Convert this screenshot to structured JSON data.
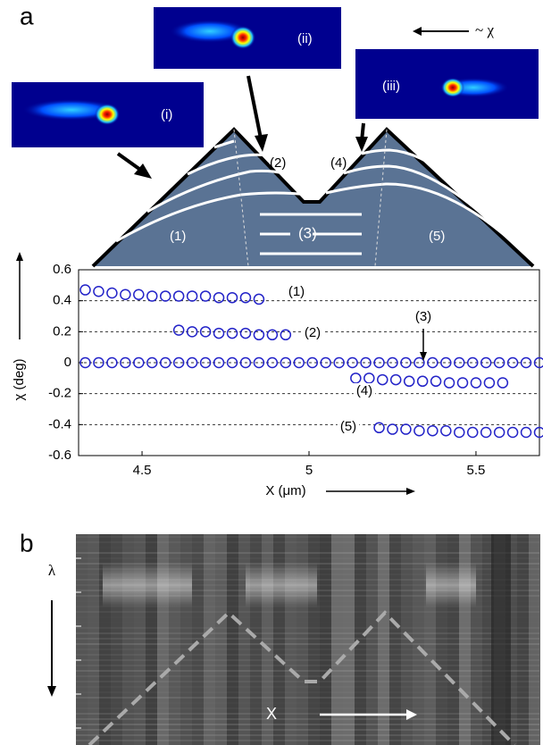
{
  "panel_a_label": "a",
  "panel_b_label": "b",
  "diagram": {
    "direction_label": "~ χ",
    "insets": [
      "(i)",
      "(ii)",
      "(iii)"
    ],
    "segments": [
      "(1)",
      "(2)",
      "(3)",
      "(4)",
      "(5)"
    ]
  },
  "chart_data": {
    "type": "scatter",
    "ylabel": "χ (deg)",
    "xlabel": "X (μm)",
    "xlim": [
      4.31,
      5.69
    ],
    "xticks": [
      4.5,
      5,
      5.5
    ],
    "ylim": [
      -0.6,
      0.6
    ],
    "yticks": [
      0.6,
      0.4,
      0.2,
      0,
      -0.2,
      -0.4,
      -0.6
    ],
    "reference_lines": [
      0.4,
      0.2,
      0,
      -0.2,
      -0.4
    ],
    "series": [
      {
        "name": "(1)",
        "color": "#2323c8",
        "x": [
          4.33,
          4.37,
          4.41,
          4.45,
          4.49,
          4.53,
          4.57,
          4.61,
          4.65,
          4.69,
          4.73,
          4.77,
          4.81,
          4.85
        ],
        "values": [
          0.47,
          0.46,
          0.45,
          0.44,
          0.44,
          0.43,
          0.43,
          0.43,
          0.43,
          0.43,
          0.42,
          0.42,
          0.42,
          0.41
        ]
      },
      {
        "name": "(2)",
        "color": "#2323c8",
        "x": [
          4.61,
          4.65,
          4.69,
          4.73,
          4.77,
          4.81,
          4.85,
          4.89,
          4.93
        ],
        "values": [
          0.21,
          0.2,
          0.2,
          0.19,
          0.19,
          0.19,
          0.18,
          0.18,
          0.18
        ]
      },
      {
        "name": "(3)",
        "color": "#2323c8",
        "x": [
          4.33,
          4.37,
          4.41,
          4.45,
          4.49,
          4.53,
          4.57,
          4.61,
          4.65,
          4.69,
          4.73,
          4.77,
          4.81,
          4.85,
          4.89,
          4.93,
          4.97,
          5.01,
          5.05,
          5.09,
          5.13,
          5.17,
          5.21,
          5.25,
          5.29,
          5.33,
          5.37,
          5.41,
          5.45,
          5.49,
          5.53,
          5.57,
          5.61,
          5.65,
          5.69
        ],
        "values": [
          0,
          0,
          0,
          0,
          0,
          0,
          0,
          0,
          0,
          0,
          0,
          0,
          0,
          0,
          0,
          0,
          0,
          0,
          0,
          0,
          0,
          0,
          0,
          0,
          0,
          0,
          0,
          0,
          0,
          0,
          0,
          0,
          0,
          0,
          0
        ]
      },
      {
        "name": "(4)",
        "color": "#2323c8",
        "x": [
          5.14,
          5.18,
          5.22,
          5.26,
          5.3,
          5.34,
          5.38,
          5.42,
          5.46,
          5.5,
          5.54,
          5.58
        ],
        "values": [
          -0.1,
          -0.1,
          -0.11,
          -0.11,
          -0.12,
          -0.12,
          -0.12,
          -0.13,
          -0.13,
          -0.13,
          -0.13,
          -0.13
        ]
      },
      {
        "name": "(5)",
        "color": "#2323c8",
        "x": [
          5.21,
          5.25,
          5.29,
          5.33,
          5.37,
          5.41,
          5.45,
          5.49,
          5.53,
          5.57,
          5.61,
          5.65,
          5.69
        ],
        "values": [
          -0.42,
          -0.43,
          -0.43,
          -0.44,
          -0.44,
          -0.44,
          -0.45,
          -0.45,
          -0.45,
          -0.45,
          -0.45,
          -0.45,
          -0.45
        ]
      }
    ]
  },
  "panel_b": {
    "y_label": "λ",
    "x_label": "X"
  }
}
